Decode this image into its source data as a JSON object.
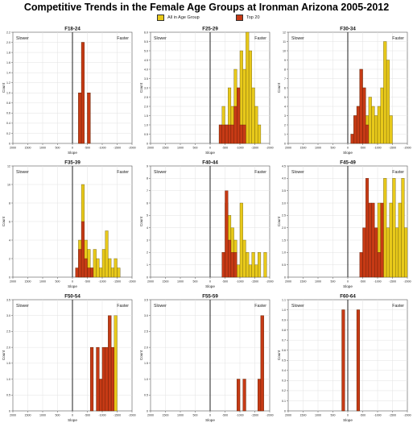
{
  "title": "Competitive Trends in the Female Age Groups at Ironman Arizona 2005-2012",
  "legend": [
    {
      "label": "All in Age Group",
      "color": "#e8c91a"
    },
    {
      "label": "Top 20",
      "color": "#c63a15"
    }
  ],
  "colors": {
    "all": "#e8c91a",
    "top20": "#c63a15",
    "edge": "#4a3a10",
    "zero_line": "#333333"
  },
  "chart_data": [
    {
      "type": "bar",
      "title": "F18-24",
      "xlabel": "Slope",
      "ylabel": "Count",
      "annotations": [
        "Slower",
        "Faster"
      ],
      "xticks": [
        "2000",
        "1500",
        "1000",
        "500",
        "0",
        "-500",
        "-1000",
        "-1500",
        "-2000"
      ],
      "xlim": [
        2000,
        -2000
      ],
      "yticks": [
        "0",
        "0.2",
        "0.4",
        "0.6",
        "0.8",
        "1.0",
        "1.2",
        "1.4",
        "1.6",
        "1.8",
        "2.0",
        "2.2"
      ],
      "ylim": [
        0,
        2.2
      ],
      "bin_width": 100,
      "series": [
        {
          "name": "All in Age Group",
          "bins": [
            [
              -200,
              1
            ],
            [
              -300,
              2
            ],
            [
              -500,
              1
            ]
          ]
        },
        {
          "name": "Top 20",
          "bins": [
            [
              -200,
              1
            ],
            [
              -300,
              2
            ],
            [
              -500,
              1
            ]
          ]
        }
      ]
    },
    {
      "type": "bar",
      "title": "F25-29",
      "xlabel": "Slope",
      "ylabel": "Count",
      "annotations": [
        "Slower",
        "Faster"
      ],
      "xticks": [
        "2000",
        "1500",
        "1000",
        "500",
        "0",
        "-500",
        "-1000",
        "-1500",
        "-2000"
      ],
      "xlim": [
        2000,
        -2000
      ],
      "yticks": [
        "0",
        "0.5",
        "1.0",
        "1.5",
        "2.0",
        "2.5",
        "3.0",
        "3.5",
        "4.0",
        "4.5",
        "5.0",
        "5.5",
        "6.0"
      ],
      "ylim": [
        0,
        6
      ],
      "bin_width": 100,
      "series": [
        {
          "name": "All in Age Group",
          "bins": [
            [
              -300,
              1
            ],
            [
              -400,
              2
            ],
            [
              -500,
              1
            ],
            [
              -600,
              3
            ],
            [
              -700,
              2
            ],
            [
              -800,
              4
            ],
            [
              -900,
              3
            ],
            [
              -1000,
              5
            ],
            [
              -1100,
              4
            ],
            [
              -1200,
              6
            ],
            [
              -1300,
              5
            ],
            [
              -1400,
              3
            ],
            [
              -1500,
              2
            ],
            [
              -1600,
              1
            ]
          ]
        },
        {
          "name": "Top 20",
          "bins": [
            [
              -300,
              1
            ],
            [
              -400,
              1
            ],
            [
              -500,
              1
            ],
            [
              -600,
              1
            ],
            [
              -700,
              1
            ],
            [
              -800,
              2
            ],
            [
              -900,
              3
            ],
            [
              -1000,
              1
            ],
            [
              -1100,
              1
            ]
          ]
        }
      ]
    },
    {
      "type": "bar",
      "title": "F30-34",
      "xlabel": "Slope",
      "ylabel": "Count",
      "annotations": [
        "Slower",
        "Faster"
      ],
      "xticks": [
        "2000",
        "1500",
        "1000",
        "500",
        "0",
        "-500",
        "-1000",
        "-1500",
        "-2000"
      ],
      "xlim": [
        2000,
        -2000
      ],
      "yticks": [
        "0",
        "1",
        "2",
        "3",
        "4",
        "5",
        "6",
        "7",
        "8",
        "9",
        "10",
        "11",
        "12"
      ],
      "ylim": [
        0,
        12
      ],
      "bin_width": 100,
      "series": [
        {
          "name": "All in Age Group",
          "bins": [
            [
              -100,
              1
            ],
            [
              -200,
              3
            ],
            [
              -300,
              4
            ],
            [
              -400,
              8
            ],
            [
              -500,
              6
            ],
            [
              -600,
              3
            ],
            [
              -700,
              5
            ],
            [
              -800,
              4
            ],
            [
              -900,
              3
            ],
            [
              -1000,
              4
            ],
            [
              -1100,
              6
            ],
            [
              -1200,
              11
            ],
            [
              -1300,
              9
            ],
            [
              -1400,
              3
            ]
          ]
        },
        {
          "name": "Top 20",
          "bins": [
            [
              -100,
              1
            ],
            [
              -200,
              3
            ],
            [
              -300,
              4
            ],
            [
              -400,
              8
            ],
            [
              -500,
              6
            ],
            [
              -600,
              2
            ]
          ]
        }
      ]
    },
    {
      "type": "bar",
      "title": "F35-39",
      "xlabel": "Slope",
      "ylabel": "Count",
      "annotations": [
        "Slower",
        "Faster"
      ],
      "xticks": [
        "2000",
        "1500",
        "1000",
        "500",
        "0",
        "-500",
        "-1000",
        "-1500",
        "-2000"
      ],
      "xlim": [
        2000,
        -2000
      ],
      "yticks": [
        "0",
        "2",
        "4",
        "6",
        "8",
        "10",
        "12"
      ],
      "ylim": [
        0,
        12
      ],
      "bin_width": 100,
      "series": [
        {
          "name": "All in Age Group",
          "bins": [
            [
              -200,
              4
            ],
            [
              -300,
              10
            ],
            [
              -400,
              4
            ],
            [
              -500,
              3
            ],
            [
              -600,
              1
            ],
            [
              -700,
              3
            ],
            [
              -800,
              2
            ],
            [
              -900,
              1
            ],
            [
              -1000,
              3
            ],
            [
              -1100,
              5
            ],
            [
              -1200,
              2
            ],
            [
              -1300,
              1
            ],
            [
              -1400,
              2
            ],
            [
              -1500,
              1
            ]
          ]
        },
        {
          "name": "Top 20",
          "bins": [
            [
              -100,
              1
            ],
            [
              -200,
              3
            ],
            [
              -300,
              6
            ],
            [
              -400,
              2
            ],
            [
              -500,
              1
            ],
            [
              -600,
              1
            ]
          ]
        }
      ]
    },
    {
      "type": "bar",
      "title": "F40-44",
      "xlabel": "Slope",
      "ylabel": "Count",
      "annotations": [
        "Slower",
        "Faster"
      ],
      "xticks": [
        "2000",
        "1500",
        "1000",
        "500",
        "0",
        "-500",
        "-1000",
        "-1500",
        "-2000"
      ],
      "xlim": [
        2000,
        -2000
      ],
      "yticks": [
        "0",
        "1",
        "2",
        "3",
        "4",
        "5",
        "6",
        "7",
        "8",
        "9"
      ],
      "ylim": [
        0,
        9
      ],
      "bin_width": 100,
      "series": [
        {
          "name": "All in Age Group",
          "bins": [
            [
              -400,
              2
            ],
            [
              -500,
              6
            ],
            [
              -600,
              5
            ],
            [
              -700,
              4
            ],
            [
              -800,
              3
            ],
            [
              -900,
              1
            ],
            [
              -1000,
              6
            ],
            [
              -1100,
              3
            ],
            [
              -1200,
              2
            ],
            [
              -1300,
              1
            ],
            [
              -1400,
              2
            ],
            [
              -1500,
              1
            ],
            [
              -1600,
              2
            ],
            [
              -1800,
              2
            ]
          ]
        },
        {
          "name": "Top 20",
          "bins": [
            [
              -400,
              2
            ],
            [
              -500,
              7
            ],
            [
              -600,
              3
            ],
            [
              -700,
              2
            ],
            [
              -800,
              2
            ]
          ]
        }
      ]
    },
    {
      "type": "bar",
      "title": "F45-49",
      "xlabel": "Slope",
      "ylabel": "Count",
      "annotations": [
        "Slower",
        "Faster"
      ],
      "xticks": [
        "2000",
        "1500",
        "1000",
        "500",
        "0",
        "-500",
        "-1000",
        "-1500",
        "-2000"
      ],
      "xlim": [
        2000,
        -2000
      ],
      "yticks": [
        "0",
        "0.5",
        "1.0",
        "1.5",
        "2.0",
        "2.5",
        "3.0",
        "3.5",
        "4.0",
        "4.5"
      ],
      "ylim": [
        0,
        4.5
      ],
      "bin_width": 100,
      "series": [
        {
          "name": "All in Age Group",
          "bins": [
            [
              -900,
              1
            ],
            [
              -1000,
              3
            ],
            [
              -1100,
              2
            ],
            [
              -1200,
              4
            ],
            [
              -1300,
              2
            ],
            [
              -1400,
              3
            ],
            [
              -1500,
              4
            ],
            [
              -1600,
              2
            ],
            [
              -1700,
              3
            ],
            [
              -1800,
              4
            ],
            [
              -1900,
              2
            ]
          ]
        },
        {
          "name": "Top 20",
          "bins": [
            [
              -400,
              1
            ],
            [
              -500,
              2
            ],
            [
              -600,
              4
            ],
            [
              -700,
              3
            ],
            [
              -800,
              3
            ],
            [
              -900,
              2
            ],
            [
              -1000,
              1
            ],
            [
              -1100,
              3
            ]
          ]
        }
      ]
    },
    {
      "type": "bar",
      "title": "F50-54",
      "xlabel": "Slope",
      "ylabel": "Count",
      "annotations": [
        "Slower",
        "Faster"
      ],
      "xticks": [
        "2000",
        "1500",
        "1000",
        "500",
        "0",
        "-500",
        "-1000",
        "-1500",
        "-2000"
      ],
      "xlim": [
        2000,
        -2000
      ],
      "yticks": [
        "0",
        "0.5",
        "1.0",
        "1.5",
        "2.0",
        "2.5",
        "3.0",
        "3.5"
      ],
      "ylim": [
        0,
        3.5
      ],
      "bin_width": 100,
      "series": [
        {
          "name": "All in Age Group",
          "bins": [
            [
              -600,
              2
            ],
            [
              -800,
              2
            ],
            [
              -900,
              1
            ],
            [
              -1000,
              2
            ],
            [
              -1100,
              2
            ],
            [
              -1200,
              3
            ],
            [
              -1300,
              2
            ],
            [
              -1400,
              3
            ]
          ]
        },
        {
          "name": "Top 20",
          "bins": [
            [
              -600,
              2
            ],
            [
              -800,
              2
            ],
            [
              -900,
              1
            ],
            [
              -1000,
              2
            ],
            [
              -1100,
              2
            ],
            [
              -1200,
              3
            ],
            [
              -1300,
              2
            ]
          ]
        }
      ]
    },
    {
      "type": "bar",
      "title": "F55-59",
      "xlabel": "Slope",
      "ylabel": "Count",
      "annotations": [
        "Slower",
        "Faster"
      ],
      "xticks": [
        "2000",
        "1500",
        "1000",
        "500",
        "0",
        "-500",
        "-1000",
        "-1500",
        "-2000"
      ],
      "xlim": [
        2000,
        -2000
      ],
      "yticks": [
        "0",
        "0.5",
        "1.0",
        "1.5",
        "2.0",
        "2.5",
        "3.0",
        "3.5"
      ],
      "ylim": [
        0,
        3.5
      ],
      "bin_width": 100,
      "series": [
        {
          "name": "All in Age Group",
          "bins": [
            [
              -900,
              1
            ],
            [
              -1100,
              1
            ],
            [
              -1600,
              1
            ],
            [
              -1700,
              3
            ]
          ]
        },
        {
          "name": "Top 20",
          "bins": [
            [
              -900,
              1
            ],
            [
              -1100,
              1
            ],
            [
              -1600,
              1
            ],
            [
              -1700,
              3
            ]
          ]
        }
      ]
    },
    {
      "type": "bar",
      "title": "F60-64",
      "xlabel": "Slope",
      "ylabel": "Count",
      "annotations": [
        "Slower",
        "Faster"
      ],
      "xticks": [
        "2000",
        "1500",
        "1000",
        "500",
        "0",
        "-500",
        "-1000",
        "-1500",
        "-2000"
      ],
      "xlim": [
        2000,
        -2000
      ],
      "yticks": [
        "0",
        "0.1",
        "0.2",
        "0.3",
        "0.4",
        "0.5",
        "0.6",
        "0.7",
        "0.8",
        "0.9",
        "1.0",
        "1.1"
      ],
      "ylim": [
        0,
        1.1
      ],
      "bin_width": 100,
      "series": [
        {
          "name": "All in Age Group",
          "bins": [
            [
              200,
              1
            ],
            [
              -300,
              1
            ]
          ]
        },
        {
          "name": "Top 20",
          "bins": [
            [
              200,
              1
            ],
            [
              -300,
              1
            ]
          ]
        }
      ]
    }
  ]
}
